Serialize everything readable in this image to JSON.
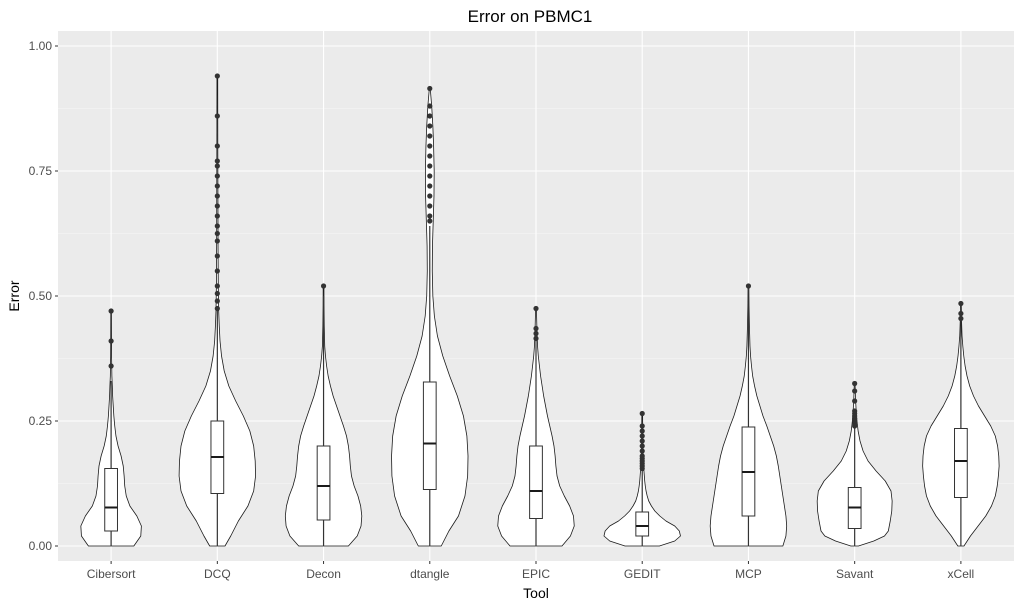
{
  "chart_data": {
    "type": "violin",
    "title": "Error on PBMC1",
    "xlabel": "Tool",
    "ylabel": "Error",
    "ylim": [
      -0.03,
      1.03
    ],
    "yticks": [
      0.0,
      0.25,
      0.5,
      0.75,
      1.0
    ],
    "ytick_labels": [
      "0.00",
      "0.25",
      "0.50",
      "0.75",
      "1.00"
    ],
    "grid": true,
    "categories": [
      "Cibersort",
      "DCQ",
      "Decon",
      "dtangle",
      "EPIC",
      "GEDIT",
      "MCP",
      "Savant",
      "xCell"
    ],
    "series": [
      {
        "category": "Cibersort",
        "box": {
          "q1": 0.03,
          "median": 0.077,
          "q3": 0.155,
          "whisker_low": 0.0,
          "whisker_high": 0.33
        },
        "outliers": [
          0.36,
          0.41,
          0.47
        ],
        "violin_max_width": 0.57,
        "violin_profile": [
          [
            0.0,
            0.75
          ],
          [
            0.02,
            0.98
          ],
          [
            0.04,
            1.0
          ],
          [
            0.06,
            0.85
          ],
          [
            0.08,
            0.62
          ],
          [
            0.1,
            0.5
          ],
          [
            0.12,
            0.45
          ],
          [
            0.14,
            0.43
          ],
          [
            0.16,
            0.4
          ],
          [
            0.18,
            0.33
          ],
          [
            0.2,
            0.23
          ],
          [
            0.22,
            0.16
          ],
          [
            0.24,
            0.12
          ],
          [
            0.26,
            0.09
          ],
          [
            0.28,
            0.07
          ],
          [
            0.3,
            0.05
          ],
          [
            0.32,
            0.04
          ],
          [
            0.34,
            0.025
          ],
          [
            0.38,
            0.015
          ],
          [
            0.42,
            0.012
          ],
          [
            0.47,
            0.01
          ]
        ]
      },
      {
        "category": "DCQ",
        "box": {
          "q1": 0.105,
          "median": 0.178,
          "q3": 0.25,
          "whisker_low": 0.0,
          "whisker_high": 0.47
        },
        "outliers": [
          0.475,
          0.49,
          0.505,
          0.52,
          0.55,
          0.58,
          0.61,
          0.625,
          0.64,
          0.66,
          0.68,
          0.7,
          0.72,
          0.74,
          0.76,
          0.77,
          0.8,
          0.86,
          0.94
        ],
        "violin_max_width": 0.72,
        "violin_profile": [
          [
            0.0,
            0.2
          ],
          [
            0.02,
            0.35
          ],
          [
            0.05,
            0.55
          ],
          [
            0.08,
            0.8
          ],
          [
            0.11,
            0.95
          ],
          [
            0.14,
            1.0
          ],
          [
            0.17,
            0.99
          ],
          [
            0.2,
            0.95
          ],
          [
            0.23,
            0.85
          ],
          [
            0.26,
            0.68
          ],
          [
            0.29,
            0.48
          ],
          [
            0.32,
            0.3
          ],
          [
            0.35,
            0.18
          ],
          [
            0.38,
            0.11
          ],
          [
            0.41,
            0.07
          ],
          [
            0.44,
            0.05
          ],
          [
            0.47,
            0.035
          ],
          [
            0.52,
            0.025
          ],
          [
            0.6,
            0.018
          ],
          [
            0.7,
            0.015
          ],
          [
            0.8,
            0.012
          ],
          [
            0.94,
            0.01
          ]
        ]
      },
      {
        "category": "Decon",
        "box": {
          "q1": 0.052,
          "median": 0.12,
          "q3": 0.2,
          "whisker_low": 0.0,
          "whisker_high": 0.5
        },
        "outliers": [
          0.52
        ],
        "violin_max_width": 0.72,
        "violin_profile": [
          [
            0.0,
            0.65
          ],
          [
            0.02,
            0.88
          ],
          [
            0.04,
            0.98
          ],
          [
            0.06,
            1.0
          ],
          [
            0.08,
            0.97
          ],
          [
            0.1,
            0.9
          ],
          [
            0.12,
            0.8
          ],
          [
            0.14,
            0.73
          ],
          [
            0.16,
            0.7
          ],
          [
            0.18,
            0.68
          ],
          [
            0.2,
            0.65
          ],
          [
            0.22,
            0.6
          ],
          [
            0.24,
            0.52
          ],
          [
            0.26,
            0.43
          ],
          [
            0.28,
            0.34
          ],
          [
            0.3,
            0.25
          ],
          [
            0.32,
            0.18
          ],
          [
            0.34,
            0.12
          ],
          [
            0.36,
            0.08
          ],
          [
            0.38,
            0.05
          ],
          [
            0.4,
            0.03
          ],
          [
            0.44,
            0.018
          ],
          [
            0.48,
            0.012
          ],
          [
            0.52,
            0.01
          ]
        ]
      },
      {
        "category": "dtangle",
        "box": {
          "q1": 0.113,
          "median": 0.205,
          "q3": 0.328,
          "whisker_low": 0.0,
          "whisker_high": 0.64
        },
        "outliers": [
          0.65,
          0.66,
          0.68,
          0.7,
          0.72,
          0.74,
          0.76,
          0.78,
          0.8,
          0.82,
          0.84,
          0.86,
          0.88,
          0.915
        ],
        "violin_max_width": 0.72,
        "violin_profile": [
          [
            0.0,
            0.3
          ],
          [
            0.03,
            0.5
          ],
          [
            0.06,
            0.75
          ],
          [
            0.1,
            0.92
          ],
          [
            0.14,
            0.99
          ],
          [
            0.18,
            1.0
          ],
          [
            0.22,
            0.97
          ],
          [
            0.26,
            0.88
          ],
          [
            0.3,
            0.72
          ],
          [
            0.34,
            0.52
          ],
          [
            0.38,
            0.34
          ],
          [
            0.42,
            0.2
          ],
          [
            0.46,
            0.12
          ],
          [
            0.5,
            0.08
          ],
          [
            0.55,
            0.065
          ],
          [
            0.6,
            0.07
          ],
          [
            0.65,
            0.09
          ],
          [
            0.7,
            0.11
          ],
          [
            0.75,
            0.115
          ],
          [
            0.8,
            0.1
          ],
          [
            0.84,
            0.08
          ],
          [
            0.88,
            0.05
          ],
          [
            0.915,
            0.012
          ]
        ]
      },
      {
        "category": "EPIC",
        "box": {
          "q1": 0.055,
          "median": 0.11,
          "q3": 0.2,
          "whisker_low": 0.0,
          "whisker_high": 0.41
        },
        "outliers": [
          0.415,
          0.425,
          0.435,
          0.475
        ],
        "violin_max_width": 0.72,
        "violin_profile": [
          [
            0.0,
            0.68
          ],
          [
            0.02,
            0.9
          ],
          [
            0.04,
            1.0
          ],
          [
            0.06,
            0.98
          ],
          [
            0.08,
            0.88
          ],
          [
            0.1,
            0.74
          ],
          [
            0.12,
            0.62
          ],
          [
            0.14,
            0.55
          ],
          [
            0.16,
            0.52
          ],
          [
            0.18,
            0.5
          ],
          [
            0.2,
            0.47
          ],
          [
            0.22,
            0.42
          ],
          [
            0.24,
            0.36
          ],
          [
            0.26,
            0.3
          ],
          [
            0.28,
            0.25
          ],
          [
            0.3,
            0.2
          ],
          [
            0.32,
            0.16
          ],
          [
            0.34,
            0.12
          ],
          [
            0.36,
            0.09
          ],
          [
            0.38,
            0.06
          ],
          [
            0.4,
            0.04
          ],
          [
            0.43,
            0.025
          ],
          [
            0.47,
            0.012
          ]
        ]
      },
      {
        "category": "GEDIT",
        "box": {
          "q1": 0.02,
          "median": 0.04,
          "q3": 0.068,
          "whisker_low": 0.0,
          "whisker_high": 0.15
        },
        "outliers": [
          0.155,
          0.16,
          0.165,
          0.17,
          0.175,
          0.18,
          0.19,
          0.2,
          0.21,
          0.22,
          0.23,
          0.24,
          0.265
        ],
        "violin_max_width": 0.72,
        "violin_profile": [
          [
            0.0,
            0.45
          ],
          [
            0.01,
            0.85
          ],
          [
            0.02,
            1.0
          ],
          [
            0.03,
            0.97
          ],
          [
            0.04,
            0.85
          ],
          [
            0.05,
            0.62
          ],
          [
            0.06,
            0.46
          ],
          [
            0.07,
            0.33
          ],
          [
            0.08,
            0.24
          ],
          [
            0.09,
            0.17
          ],
          [
            0.1,
            0.13
          ],
          [
            0.11,
            0.1
          ],
          [
            0.12,
            0.08
          ],
          [
            0.13,
            0.065
          ],
          [
            0.14,
            0.055
          ],
          [
            0.15,
            0.045
          ],
          [
            0.16,
            0.035
          ],
          [
            0.18,
            0.025
          ],
          [
            0.2,
            0.018
          ],
          [
            0.23,
            0.013
          ],
          [
            0.265,
            0.01
          ]
        ]
      },
      {
        "category": "MCP",
        "box": {
          "q1": 0.06,
          "median": 0.148,
          "q3": 0.238,
          "whisker_low": 0.0,
          "whisker_high": 0.52
        },
        "outliers": [
          0.52
        ],
        "violin_max_width": 0.72,
        "violin_profile": [
          [
            0.0,
            0.9
          ],
          [
            0.02,
            0.98
          ],
          [
            0.04,
            1.0
          ],
          [
            0.06,
            0.98
          ],
          [
            0.08,
            0.94
          ],
          [
            0.1,
            0.9
          ],
          [
            0.12,
            0.86
          ],
          [
            0.14,
            0.82
          ],
          [
            0.16,
            0.78
          ],
          [
            0.18,
            0.73
          ],
          [
            0.2,
            0.66
          ],
          [
            0.22,
            0.57
          ],
          [
            0.24,
            0.48
          ],
          [
            0.26,
            0.38
          ],
          [
            0.28,
            0.3
          ],
          [
            0.3,
            0.22
          ],
          [
            0.32,
            0.16
          ],
          [
            0.34,
            0.11
          ],
          [
            0.36,
            0.08
          ],
          [
            0.38,
            0.055
          ],
          [
            0.4,
            0.04
          ],
          [
            0.44,
            0.025
          ],
          [
            0.48,
            0.015
          ],
          [
            0.52,
            0.01
          ]
        ]
      },
      {
        "category": "Savant",
        "box": {
          "q1": 0.035,
          "median": 0.077,
          "q3": 0.117,
          "whisker_low": 0.0,
          "whisker_high": 0.235
        },
        "outliers": [
          0.24,
          0.245,
          0.25,
          0.255,
          0.26,
          0.265,
          0.27,
          0.29,
          0.31,
          0.325
        ],
        "violin_max_width": 0.72,
        "violin_profile": [
          [
            0.0,
            0.1
          ],
          [
            0.01,
            0.5
          ],
          [
            0.02,
            0.78
          ],
          [
            0.03,
            0.88
          ],
          [
            0.05,
            0.93
          ],
          [
            0.07,
            0.97
          ],
          [
            0.09,
            0.98
          ],
          [
            0.11,
            0.95
          ],
          [
            0.13,
            0.8
          ],
          [
            0.15,
            0.56
          ],
          [
            0.17,
            0.35
          ],
          [
            0.19,
            0.22
          ],
          [
            0.21,
            0.14
          ],
          [
            0.23,
            0.09
          ],
          [
            0.25,
            0.06
          ],
          [
            0.27,
            0.04
          ],
          [
            0.29,
            0.025
          ],
          [
            0.31,
            0.015
          ],
          [
            0.325,
            0.01
          ]
        ]
      },
      {
        "category": "xCell",
        "box": {
          "q1": 0.097,
          "median": 0.17,
          "q3": 0.235,
          "whisker_low": 0.0,
          "whisker_high": 0.45
        },
        "outliers": [
          0.455,
          0.465,
          0.485
        ],
        "violin_max_width": 0.72,
        "violin_profile": [
          [
            0.0,
            0.08
          ],
          [
            0.02,
            0.25
          ],
          [
            0.04,
            0.45
          ],
          [
            0.06,
            0.65
          ],
          [
            0.08,
            0.8
          ],
          [
            0.1,
            0.9
          ],
          [
            0.12,
            0.95
          ],
          [
            0.14,
            0.98
          ],
          [
            0.16,
            1.0
          ],
          [
            0.18,
            0.99
          ],
          [
            0.2,
            0.96
          ],
          [
            0.22,
            0.9
          ],
          [
            0.24,
            0.78
          ],
          [
            0.26,
            0.62
          ],
          [
            0.28,
            0.46
          ],
          [
            0.3,
            0.33
          ],
          [
            0.32,
            0.23
          ],
          [
            0.34,
            0.16
          ],
          [
            0.36,
            0.11
          ],
          [
            0.38,
            0.075
          ],
          [
            0.4,
            0.05
          ],
          [
            0.42,
            0.03
          ],
          [
            0.45,
            0.017
          ],
          [
            0.485,
            0.01
          ]
        ]
      }
    ]
  }
}
